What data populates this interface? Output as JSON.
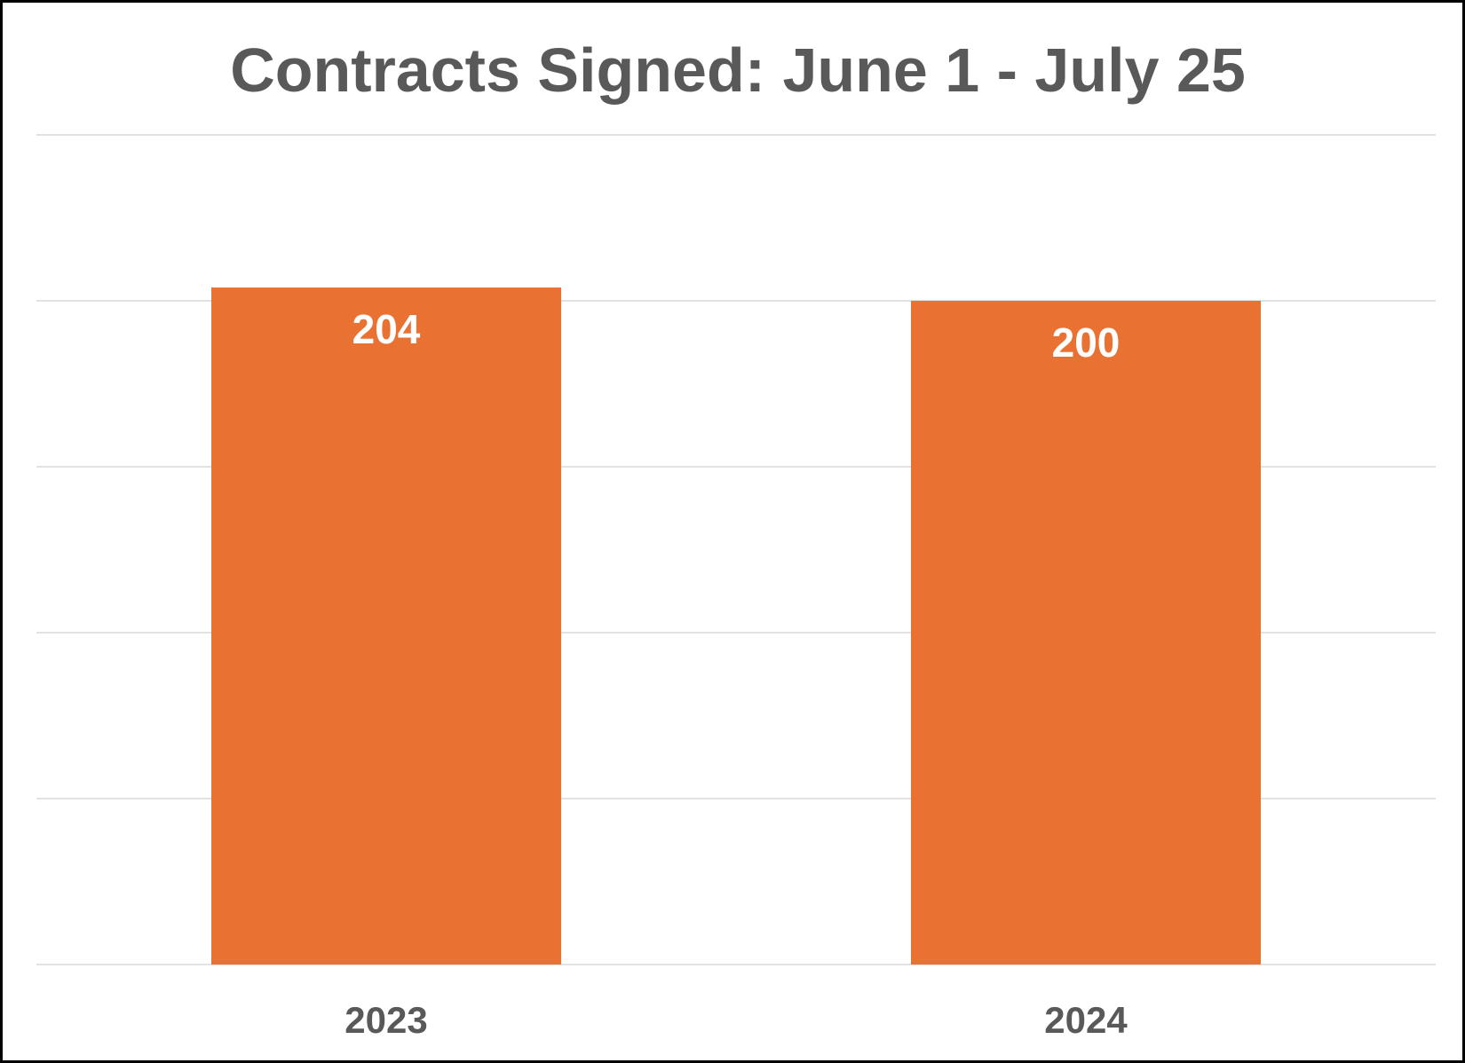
{
  "chart_data": {
    "type": "bar",
    "title": "Contracts Signed: June 1 - July 25",
    "xlabel": "",
    "ylabel": "",
    "categories": [
      "2023",
      "2024"
    ],
    "values": [
      204,
      200
    ],
    "data_labels": [
      "204",
      "200"
    ],
    "ylim": [
      0,
      250
    ],
    "gridlines": [
      0,
      50,
      100,
      150,
      200,
      250
    ],
    "grid": true,
    "y_axis_labels_shown": false,
    "legend": "none",
    "bar_color": "#E97132",
    "data_label_color": "#FFFFFF",
    "text_color": "#595959"
  }
}
